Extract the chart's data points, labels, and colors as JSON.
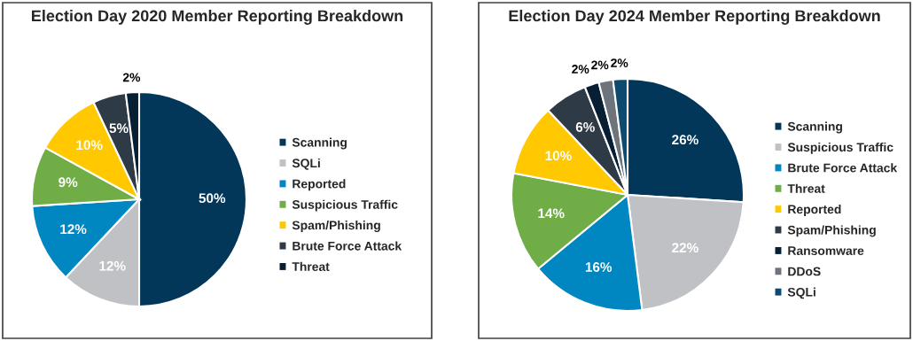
{
  "chart_data": [
    {
      "type": "pie",
      "title": "Election Day 2020 Member Reporting Breakdown",
      "categories": [
        "Scanning",
        "SQLi",
        "Reported",
        "Suspicious Traffic",
        "Spam/Phishing",
        "Brute Force Attack",
        "Threat"
      ],
      "values": [
        50,
        12,
        12,
        9,
        10,
        5,
        2
      ],
      "colors": [
        "#03375a",
        "#bfc1c5",
        "#0086c0",
        "#70ad47",
        "#ffc800",
        "#2e3a46",
        "#061f33"
      ],
      "value_labels": [
        "50%",
        "12%",
        "12%",
        "9%",
        "10%",
        "5%",
        "2%"
      ],
      "legend": "right"
    },
    {
      "type": "pie",
      "title": "Election Day 2024 Member Reporting Breakdown",
      "categories": [
        "Scanning",
        "Suspicious Traffic",
        "Brute Force Attack",
        "Threat",
        "Reported",
        "Spam/Phishing",
        "Ransomware",
        "DDoS",
        "SQLi"
      ],
      "values": [
        26,
        22,
        16,
        14,
        10,
        6,
        2,
        2,
        2
      ],
      "colors": [
        "#03375a",
        "#bfc1c5",
        "#0086c0",
        "#70ad47",
        "#ffc800",
        "#2e3a46",
        "#061f33",
        "#6d747c",
        "#0d4a6e"
      ],
      "value_labels": [
        "26%",
        "22%",
        "16%",
        "14%",
        "10%",
        "6%",
        "2%",
        "2%",
        "2%"
      ],
      "legend": "right"
    }
  ]
}
